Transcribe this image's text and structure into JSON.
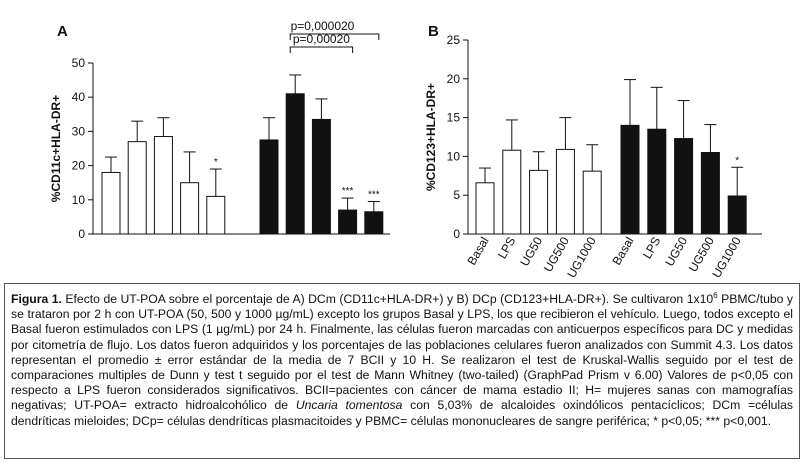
{
  "chart_data": [
    {
      "type": "bar",
      "panel": "A",
      "y_label": "%CD11c+HLA-DR+",
      "categories": [
        null,
        null,
        null,
        null,
        null,
        null,
        null,
        null,
        null,
        null
      ],
      "series": [
        {
          "colors": [
            "#ffffff",
            "#ffffff",
            "#ffffff",
            "#ffffff",
            "#ffffff",
            "#111111",
            "#111111",
            "#111111",
            "#111111",
            "#111111"
          ],
          "values": [
            18,
            27,
            28.5,
            15,
            11,
            27.5,
            41,
            33.5,
            7,
            6.5
          ],
          "errors": [
            4.5,
            6,
            5.5,
            9,
            8,
            6.5,
            5.5,
            6,
            3.5,
            3
          ]
        }
      ],
      "annotations": [
        null,
        null,
        null,
        null,
        "*",
        null,
        null,
        null,
        "***",
        "***"
      ],
      "brackets": [
        {
          "label": "p=0,00020"
        },
        {
          "label": "p=0,000020"
        }
      ],
      "ylim": [
        0,
        50
      ],
      "yticks": [
        0,
        10,
        20,
        30,
        40,
        50
      ]
    },
    {
      "type": "bar",
      "panel": "B",
      "y_label": "%CD123+HLA-DR+",
      "categories": [
        "Basal",
        "LPS",
        "UG50",
        "UG500",
        "UG1000",
        "Basal",
        "LPS",
        "UG50",
        "UG500",
        "UG1000"
      ],
      "series": [
        {
          "colors": [
            "#ffffff",
            "#ffffff",
            "#ffffff",
            "#ffffff",
            "#ffffff",
            "#111111",
            "#111111",
            "#111111",
            "#111111",
            "#111111"
          ],
          "values": [
            6.6,
            10.8,
            8.2,
            10.9,
            8.1,
            14,
            13.5,
            12.3,
            10.5,
            4.9
          ],
          "errors": [
            1.9,
            3.9,
            2.4,
            4.1,
            3.4,
            5.9,
            5.4,
            4.9,
            3.6,
            3.7
          ]
        }
      ],
      "annotations": [
        null,
        null,
        null,
        null,
        null,
        null,
        null,
        null,
        null,
        "*"
      ],
      "ylim": [
        0,
        25
      ],
      "yticks": [
        0,
        5,
        10,
        15,
        20,
        25
      ]
    }
  ],
  "caption": {
    "label": "Figura 1.",
    "part1": " Efecto de UT-POA sobre el porcentaje de A) DCm (CD11c+HLA-DR+) y B) DCp (CD123+HLA-DR+). Se cultivaron 1x10",
    "sup": "6",
    "part2": " PBMC/tubo y se trataron por 2 h con UT-POA (50, 500 y 1000 µg/mL) excepto los grupos Basal y LPS, los que recibieron el vehículo. Luego, todos excepto el Basal fueron estimulados con LPS (1 µg/mL) por 24 h. Finalmente, las células fueron marcadas con anticuerpos específicos para DC y medidas por citometría de flujo. Los datos fueron adquiridos y los porcentajes de las poblaciones celulares fueron analizados con Summit 4.3. Los datos representan el promedio ± error estándar de la media de 7 BCII y 10 H. Se realizaron el test de Kruskal-Wallis seguido por el test de comparaciones multiples de Dunn y test t seguido por el test de Mann Whitney (two-tailed) (GraphPad Prism v 6.00) Valores de p<0,05 con respecto a LPS fueron considerados significativos. BCII=pacientes con cáncer de mama estadio II; H= mujeres sanas con mamografías negativas; UT-POA= extracto hidroalcohólico de ",
    "italic": "Uncaria tomentosa",
    "part3": " con 5,03% de alcaloides oxindólicos pentacíclicos; DCm =células dendríticas mieloides; DCp= células dendríticas plasmacitoides y PBMC= células mononucleares de sangre periférica; * p<0,05; *** p<0,001."
  }
}
